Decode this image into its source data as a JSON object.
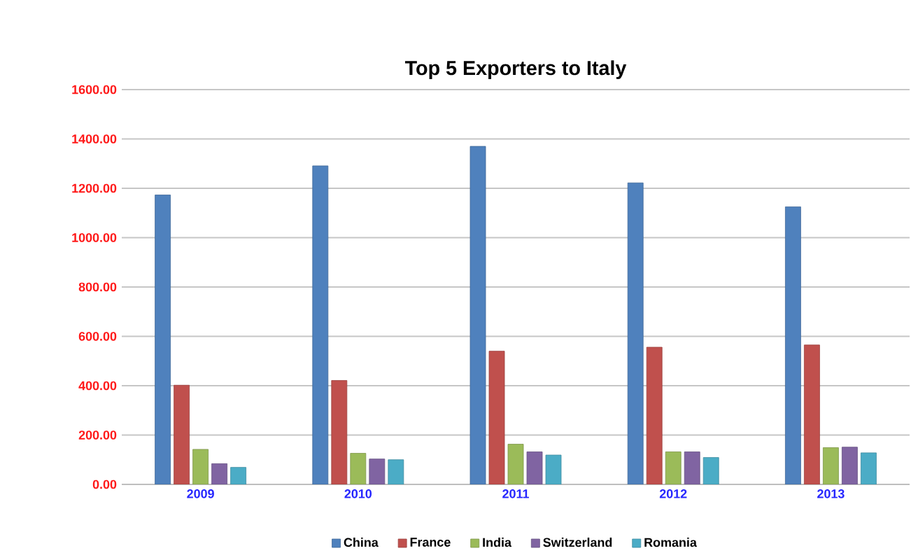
{
  "chart_data": {
    "type": "bar",
    "title": "Top 5 Exporters to Italy",
    "categories": [
      "2009",
      "2010",
      "2011",
      "2012",
      "2013"
    ],
    "series": [
      {
        "name": "China",
        "color": "#4f81bd",
        "values": [
          1173,
          1291,
          1370,
          1222,
          1125
        ]
      },
      {
        "name": "France",
        "color": "#c0504d",
        "values": [
          402,
          421,
          540,
          556,
          565
        ]
      },
      {
        "name": "India",
        "color": "#9bbb59",
        "values": [
          142,
          126,
          163,
          132,
          149
        ]
      },
      {
        "name": "Switzerland",
        "color": "#8064a2",
        "values": [
          84,
          103,
          132,
          132,
          151
        ]
      },
      {
        "name": "Romania",
        "color": "#4bacc6",
        "values": [
          69,
          100,
          119,
          109,
          128
        ]
      }
    ],
    "ylim": [
      0,
      1600
    ],
    "yticks": [
      {
        "value": 0,
        "label": "0.00"
      },
      {
        "value": 200,
        "label": "200.00"
      },
      {
        "value": 400,
        "label": "400.00"
      },
      {
        "value": 600,
        "label": "600.00"
      },
      {
        "value": 800,
        "label": "800.00"
      },
      {
        "value": 1000,
        "label": "1000.00"
      },
      {
        "value": 1200,
        "label": "1200.00"
      },
      {
        "value": 1400,
        "label": "1400.00"
      },
      {
        "value": 1600,
        "label": "1600.00"
      }
    ],
    "grid": "y",
    "legend": "bottom"
  }
}
